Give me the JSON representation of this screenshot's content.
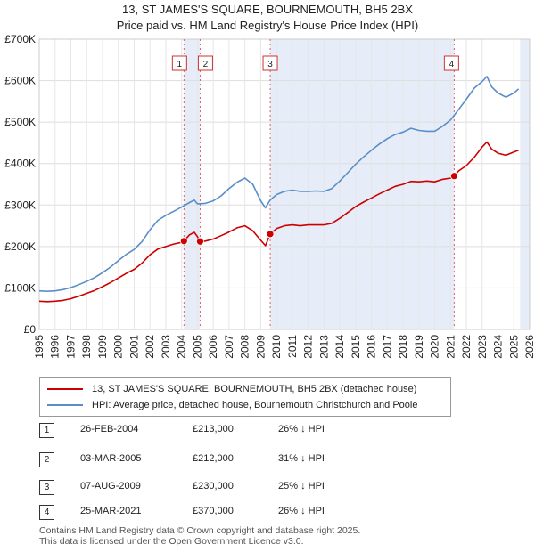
{
  "title_line1": "13, ST JAMES'S SQUARE, BOURNEMOUTH, BH5 2BX",
  "title_line2": "Price paid vs. HM Land Registry's House Price Index (HPI)",
  "colors": {
    "price": "#cc0000",
    "hpi": "#5a8ec8",
    "shade": "#dde6f5",
    "marker_line": "#e06060"
  },
  "chart_data": {
    "type": "line",
    "ylim": [
      0,
      700000
    ],
    "xlim": [
      1995,
      2026
    ],
    "y_ticks": [
      {
        "value": 0,
        "label": "£0"
      },
      {
        "value": 100000,
        "label": "£100K"
      },
      {
        "value": 200000,
        "label": "£200K"
      },
      {
        "value": 300000,
        "label": "£300K"
      },
      {
        "value": 400000,
        "label": "£400K"
      },
      {
        "value": 500000,
        "label": "£500K"
      },
      {
        "value": 600000,
        "label": "£600K"
      },
      {
        "value": 700000,
        "label": "£700K"
      }
    ],
    "x_ticks": [
      1995,
      1996,
      1997,
      1998,
      1999,
      2000,
      2001,
      2002,
      2003,
      2004,
      2005,
      2006,
      2007,
      2008,
      2009,
      2010,
      2011,
      2012,
      2013,
      2014,
      2015,
      2016,
      2017,
      2018,
      2019,
      2020,
      2021,
      2022,
      2023,
      2024,
      2025,
      2026
    ],
    "shaded_ranges": [
      [
        2004.15,
        2005.17
      ],
      [
        2009.6,
        2021.23
      ],
      [
        2025.4,
        2026.0
      ]
    ],
    "series": [
      {
        "name": "13, ST JAMES'S SQUARE, BOURNEMOUTH, BH5 2BX (detached house)",
        "key": "price",
        "x": [
          1995.0,
          1995.5,
          1996.0,
          1996.5,
          1997.0,
          1997.5,
          1998.0,
          1998.5,
          1999.0,
          1999.5,
          2000.0,
          2000.5,
          2001.0,
          2001.5,
          2002.0,
          2002.5,
          2003.0,
          2003.5,
          2004.0,
          2004.15,
          2004.5,
          2004.8,
          2005.0,
          2005.17,
          2005.5,
          2006.0,
          2006.5,
          2007.0,
          2007.5,
          2008.0,
          2008.5,
          2009.0,
          2009.3,
          2009.6,
          2010.0,
          2010.5,
          2011.0,
          2011.5,
          2012.0,
          2012.5,
          2013.0,
          2013.5,
          2014.0,
          2014.5,
          2015.0,
          2015.5,
          2016.0,
          2016.5,
          2017.0,
          2017.5,
          2018.0,
          2018.5,
          2019.0,
          2019.5,
          2020.0,
          2020.5,
          2021.0,
          2021.23,
          2021.5,
          2022.0,
          2022.5,
          2023.0,
          2023.3,
          2023.6,
          2024.0,
          2024.5,
          2025.0,
          2025.3
        ],
        "values": [
          68000,
          67000,
          68000,
          70000,
          74000,
          80000,
          87000,
          94000,
          103000,
          113000,
          124000,
          135000,
          145000,
          160000,
          180000,
          194000,
          200000,
          206000,
          210000,
          213000,
          228000,
          234000,
          224000,
          212000,
          213000,
          218000,
          226000,
          235000,
          245000,
          250000,
          238000,
          215000,
          202000,
          230000,
          243000,
          250000,
          252000,
          250000,
          252000,
          252000,
          252000,
          256000,
          268000,
          282000,
          296000,
          307000,
          317000,
          327000,
          336000,
          345000,
          350000,
          357000,
          356000,
          358000,
          356000,
          362000,
          365000,
          370000,
          382000,
          395000,
          415000,
          440000,
          452000,
          435000,
          425000,
          420000,
          428000,
          432000
        ]
      },
      {
        "name": "HPI: Average price, detached house, Bournemouth Christchurch and Poole",
        "key": "hpi",
        "x": [
          1995.0,
          1995.5,
          1996.0,
          1996.5,
          1997.0,
          1997.5,
          1998.0,
          1998.5,
          1999.0,
          1999.5,
          2000.0,
          2000.5,
          2001.0,
          2001.5,
          2002.0,
          2002.5,
          2003.0,
          2003.5,
          2004.0,
          2004.5,
          2004.8,
          2005.0,
          2005.5,
          2006.0,
          2006.5,
          2007.0,
          2007.5,
          2008.0,
          2008.5,
          2009.0,
          2009.3,
          2009.6,
          2010.0,
          2010.5,
          2011.0,
          2011.5,
          2012.0,
          2012.5,
          2013.0,
          2013.5,
          2014.0,
          2014.5,
          2015.0,
          2015.5,
          2016.0,
          2016.5,
          2017.0,
          2017.5,
          2018.0,
          2018.5,
          2019.0,
          2019.5,
          2020.0,
          2020.5,
          2021.0,
          2021.5,
          2022.0,
          2022.5,
          2023.0,
          2023.3,
          2023.6,
          2024.0,
          2024.5,
          2025.0,
          2025.3
        ],
        "values": [
          93000,
          92000,
          93000,
          96000,
          101000,
          108000,
          116000,
          125000,
          137000,
          150000,
          166000,
          181000,
          193000,
          212000,
          240000,
          263000,
          275000,
          285000,
          295000,
          306000,
          312000,
          303000,
          304000,
          310000,
          322000,
          340000,
          355000,
          365000,
          350000,
          310000,
          293000,
          312000,
          325000,
          333000,
          336000,
          333000,
          333000,
          334000,
          333000,
          340000,
          358000,
          378000,
          398000,
          416000,
          432000,
          447000,
          460000,
          470000,
          476000,
          485000,
          480000,
          478000,
          478000,
          490000,
          505000,
          530000,
          555000,
          582000,
          598000,
          610000,
          585000,
          570000,
          560000,
          570000,
          580000
        ]
      }
    ],
    "transactions": [
      {
        "id": "1",
        "x": 2004.15,
        "price": 213000,
        "date": "26-FEB-2004",
        "price_label": "£213,000",
        "delta": "26% ↓ HPI"
      },
      {
        "id": "2",
        "x": 2005.17,
        "price": 212000,
        "date": "03-MAR-2005",
        "price_label": "£212,000",
        "delta": "31% ↓ HPI"
      },
      {
        "id": "3",
        "x": 2009.6,
        "price": 230000,
        "date": "07-AUG-2009",
        "price_label": "£230,000",
        "delta": "25% ↓ HPI"
      },
      {
        "id": "4",
        "x": 2021.23,
        "price": 370000,
        "date": "25-MAR-2021",
        "price_label": "£370,000",
        "delta": "26% ↓ HPI"
      }
    ]
  },
  "legend": {
    "price_label": "13, ST JAMES'S SQUARE, BOURNEMOUTH, BH5 2BX (detached house)",
    "hpi_label": "HPI: Average price, detached house, Bournemouth Christchurch and Poole"
  },
  "footer": {
    "line1": "Contains HM Land Registry data © Crown copyright and database right 2025.",
    "line2": "This data is licensed under the Open Government Licence v3.0."
  }
}
